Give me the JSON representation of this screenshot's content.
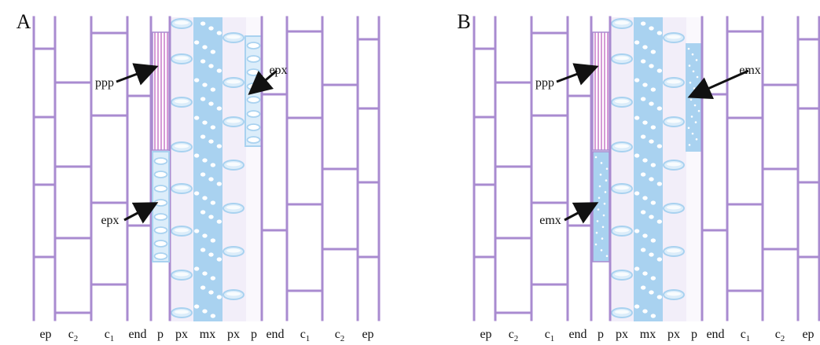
{
  "panels": [
    {
      "id": "A",
      "label": "A",
      "bottom_labels": [
        "ep",
        "c",
        "c",
        "end",
        "p",
        "px",
        "mx",
        "px",
        "p",
        "end",
        "c",
        "c",
        "ep"
      ],
      "bottom_subscripts": [
        "",
        "2",
        "1",
        "",
        "",
        "",
        "",
        "",
        "",
        "",
        "1",
        "2",
        ""
      ],
      "annotations": [
        {
          "text": "ppp",
          "target": "protophloem-pole-pericycle"
        },
        {
          "text": "epx",
          "target": "ectopic-protoxylem-right"
        },
        {
          "text": "epx",
          "target": "ectopic-protoxylem-left"
        }
      ]
    },
    {
      "id": "B",
      "label": "B",
      "bottom_labels": [
        "ep",
        "c",
        "c",
        "end",
        "p",
        "px",
        "mx",
        "px",
        "p",
        "end",
        "c",
        "c",
        "ep"
      ],
      "bottom_subscripts": [
        "",
        "2",
        "1",
        "",
        "",
        "",
        "",
        "",
        "",
        "",
        "1",
        "2",
        ""
      ],
      "annotations": [
        {
          "text": "ppp",
          "target": "protophloem-pole-pericycle"
        },
        {
          "text": "emx",
          "target": "ectopic-metaxylem-right"
        },
        {
          "text": "emx",
          "target": "ectopic-metaxylem-left"
        }
      ]
    }
  ],
  "colors": {
    "cell_wall": "#a98bd0",
    "xylem_fill": "#a9d2f0",
    "xylem_light": "#dcedfa",
    "ppp_stripe": "#d69ad6",
    "pale_band": "#f2eef9",
    "arrow": "#111111"
  }
}
